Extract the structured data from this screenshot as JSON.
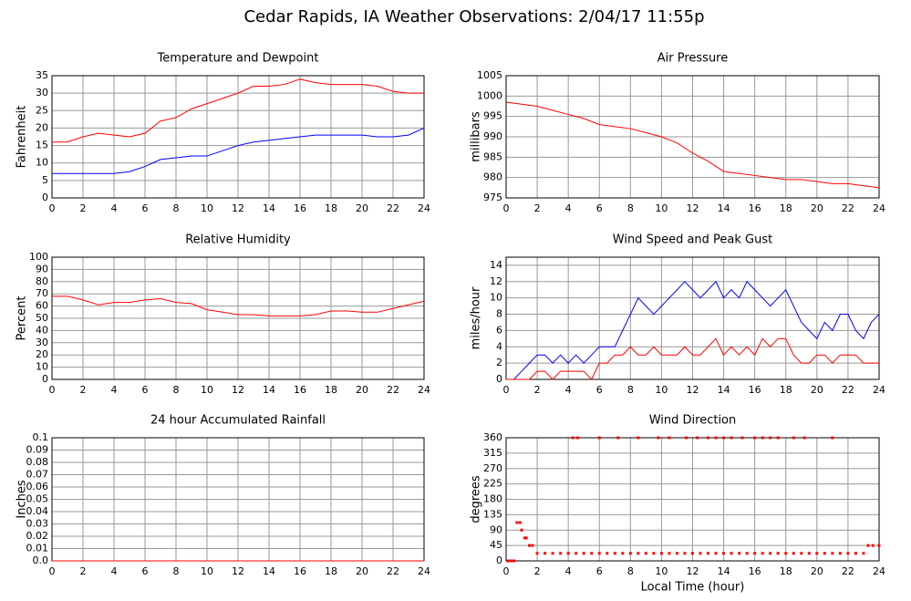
{
  "title": "Cedar Rapids, IA Weather Observations: 2/04/17 11:55p",
  "chart_data": [
    {
      "type": "line",
      "title": "Temperature and Dewpoint",
      "ylabel": "Fahrenheit",
      "x": [
        0,
        1,
        2,
        3,
        4,
        5,
        6,
        7,
        8,
        9,
        10,
        11,
        12,
        13,
        14,
        15,
        16,
        17,
        18,
        19,
        20,
        21,
        22,
        23,
        24
      ],
      "series": [
        {
          "color": "#ff0000",
          "values": [
            16,
            16,
            17.5,
            18.5,
            18,
            17.5,
            18.5,
            22,
            23,
            25.5,
            27,
            28.5,
            30,
            32,
            32,
            32.5,
            34,
            33,
            32.5,
            32.5,
            32.5,
            32,
            30.5,
            30,
            30
          ]
        },
        {
          "color": "#0000ff",
          "values": [
            7,
            7,
            7,
            7,
            7,
            7.5,
            9,
            11,
            11.5,
            12,
            12,
            13.5,
            15,
            16,
            16.5,
            17,
            17.5,
            18,
            18,
            18,
            18,
            17.5,
            17.5,
            18,
            20
          ]
        }
      ],
      "xlim": [
        0,
        24
      ],
      "xticks": [
        0,
        2,
        4,
        6,
        8,
        10,
        12,
        14,
        16,
        18,
        20,
        22,
        24
      ],
      "ylim": [
        0,
        35
      ],
      "yticks": [
        0,
        5,
        10,
        15,
        20,
        25,
        30,
        35
      ],
      "grid": true
    },
    {
      "type": "line",
      "title": "Air Pressure",
      "ylabel": "millibars",
      "x": [
        0,
        1,
        2,
        3,
        4,
        5,
        6,
        7,
        8,
        9,
        10,
        11,
        12,
        13,
        14,
        15,
        16,
        17,
        18,
        19,
        20,
        21,
        22,
        23,
        24
      ],
      "series": [
        {
          "color": "#ff0000",
          "values": [
            998.5,
            998,
            997.5,
            996.5,
            995.5,
            994.5,
            993,
            992.5,
            992,
            991,
            990,
            988.5,
            986,
            984,
            981.5,
            981,
            980.5,
            980,
            979.5,
            979.5,
            979,
            978.5,
            978.5,
            978,
            977.5
          ]
        }
      ],
      "xlim": [
        0,
        24
      ],
      "xticks": [
        0,
        2,
        4,
        6,
        8,
        10,
        12,
        14,
        16,
        18,
        20,
        22,
        24
      ],
      "ylim": [
        975,
        1005
      ],
      "yticks": [
        975,
        980,
        985,
        990,
        995,
        1000,
        1005
      ],
      "grid": true
    },
    {
      "type": "line",
      "title": "Relative Humidity",
      "ylabel": "Percent",
      "x": [
        0,
        1,
        2,
        3,
        4,
        5,
        6,
        7,
        8,
        9,
        10,
        11,
        12,
        13,
        14,
        15,
        16,
        17,
        18,
        19,
        20,
        21,
        22,
        23,
        24
      ],
      "series": [
        {
          "color": "#ff0000",
          "values": [
            68,
            68,
            65,
            61,
            63,
            63,
            65,
            66,
            63,
            62,
            57,
            55,
            53,
            53,
            52,
            52,
            52,
            53,
            56,
            56,
            55,
            55,
            58,
            61,
            64
          ]
        }
      ],
      "xlim": [
        0,
        24
      ],
      "xticks": [
        0,
        2,
        4,
        6,
        8,
        10,
        12,
        14,
        16,
        18,
        20,
        22,
        24
      ],
      "ylim": [
        0,
        100
      ],
      "yticks": [
        0,
        10,
        20,
        30,
        40,
        50,
        60,
        70,
        80,
        90,
        100
      ],
      "grid": true
    },
    {
      "type": "line",
      "title": "Wind Speed and Peak Gust",
      "ylabel": "miles/hour",
      "x": [
        0,
        0.5,
        1,
        1.5,
        2,
        2.5,
        3,
        3.5,
        4,
        4.5,
        5,
        5.5,
        6,
        6.5,
        7,
        7.5,
        8,
        8.5,
        9,
        9.5,
        10,
        10.5,
        11,
        11.5,
        12,
        12.5,
        13,
        13.5,
        14,
        14.5,
        15,
        15.5,
        16,
        16.5,
        17,
        17.5,
        18,
        18.5,
        19,
        19.5,
        20,
        20.5,
        21,
        21.5,
        22,
        22.5,
        23,
        23.5,
        24
      ],
      "series": [
        {
          "color": "#0000ff",
          "values": [
            0,
            0,
            1,
            2,
            3,
            3,
            2,
            3,
            2,
            3,
            2,
            3,
            4,
            4,
            4,
            6,
            8,
            10,
            9,
            8,
            9,
            10,
            11,
            12,
            11,
            10,
            11,
            12,
            10,
            11,
            10,
            12,
            11,
            10,
            9,
            10,
            11,
            9,
            7,
            6,
            5,
            7,
            6,
            8,
            8,
            6,
            5,
            7,
            8
          ]
        },
        {
          "color": "#ff0000",
          "values": [
            0,
            0,
            0,
            0,
            1,
            1,
            0,
            1,
            1,
            1,
            1,
            0,
            2,
            2,
            3,
            3,
            4,
            3,
            3,
            4,
            3,
            3,
            3,
            4,
            3,
            3,
            4,
            5,
            3,
            4,
            3,
            4,
            3,
            5,
            4,
            5,
            5,
            3,
            2,
            2,
            3,
            3,
            2,
            3,
            3,
            3,
            2,
            2,
            2
          ]
        }
      ],
      "xlim": [
        0,
        24
      ],
      "xticks": [
        0,
        2,
        4,
        6,
        8,
        10,
        12,
        14,
        16,
        18,
        20,
        22,
        24
      ],
      "ylim": [
        0,
        15
      ],
      "yticks": [
        0,
        2,
        4,
        6,
        8,
        10,
        12,
        14
      ],
      "grid": true
    },
    {
      "type": "line",
      "title": "24 hour Accumulated Rainfall",
      "ylabel": "Inches",
      "x": [
        0,
        24
      ],
      "series": [
        {
          "color": "#ff0000",
          "values": [
            0,
            0
          ]
        }
      ],
      "xlim": [
        0,
        24
      ],
      "xticks": [
        0,
        2,
        4,
        6,
        8,
        10,
        12,
        14,
        16,
        18,
        20,
        22,
        24
      ],
      "ylim": [
        0,
        0.1
      ],
      "yticks": [
        {
          "value": 0,
          "label": "0.0"
        },
        0.01,
        0.02,
        0.03,
        0.04,
        0.05,
        0.06,
        0.07,
        0.08,
        0.09,
        0.1
      ],
      "grid": true
    },
    {
      "type": "scatter",
      "title": "Wind Direction",
      "ylabel": "degrees",
      "xlabel": "Local Time (hour)",
      "x": [
        0.1,
        0.3,
        0.5,
        0.7,
        0.9,
        1.0,
        1.2,
        1.3,
        1.5,
        1.7,
        2,
        2.5,
        3,
        3.5,
        4,
        4.5,
        5,
        5.5,
        6,
        6.5,
        7,
        7.5,
        8,
        8.5,
        9,
        9.5,
        10,
        10.5,
        11,
        11.5,
        12,
        12.5,
        13,
        13.5,
        14,
        14.5,
        15,
        15.5,
        16,
        16.5,
        17,
        17.5,
        18,
        18.5,
        19,
        19.5,
        20,
        20.5,
        21,
        21.5,
        22,
        22.5,
        23,
        4.3,
        4.6,
        6,
        7.2,
        8.5,
        9.8,
        10.5,
        11.6,
        12.3,
        13,
        13.5,
        14,
        14.5,
        15.2,
        16,
        16.5,
        17,
        17.5,
        18.5,
        19.2,
        21,
        23.3,
        23.6,
        24
      ],
      "values": [
        0,
        0,
        0,
        112,
        112,
        90,
        67,
        67,
        45,
        45,
        22,
        22,
        22,
        22,
        22,
        22,
        22,
        22,
        22,
        22,
        22,
        22,
        22,
        22,
        22,
        22,
        22,
        22,
        22,
        22,
        22,
        22,
        22,
        22,
        22,
        22,
        22,
        22,
        22,
        22,
        22,
        22,
        22,
        22,
        22,
        22,
        22,
        22,
        22,
        22,
        22,
        22,
        22,
        360,
        360,
        360,
        360,
        360,
        360,
        360,
        360,
        360,
        360,
        360,
        360,
        360,
        360,
        360,
        360,
        360,
        360,
        360,
        360,
        360,
        45,
        45,
        45
      ],
      "color": "#ff0000",
      "xlim": [
        0,
        24
      ],
      "xticks": [
        0,
        2,
        4,
        6,
        8,
        10,
        12,
        14,
        16,
        18,
        20,
        22,
        24
      ],
      "ylim": [
        0,
        360
      ],
      "yticks": [
        0,
        45,
        90,
        135,
        180,
        225,
        270,
        315,
        360
      ],
      "grid": true
    }
  ]
}
